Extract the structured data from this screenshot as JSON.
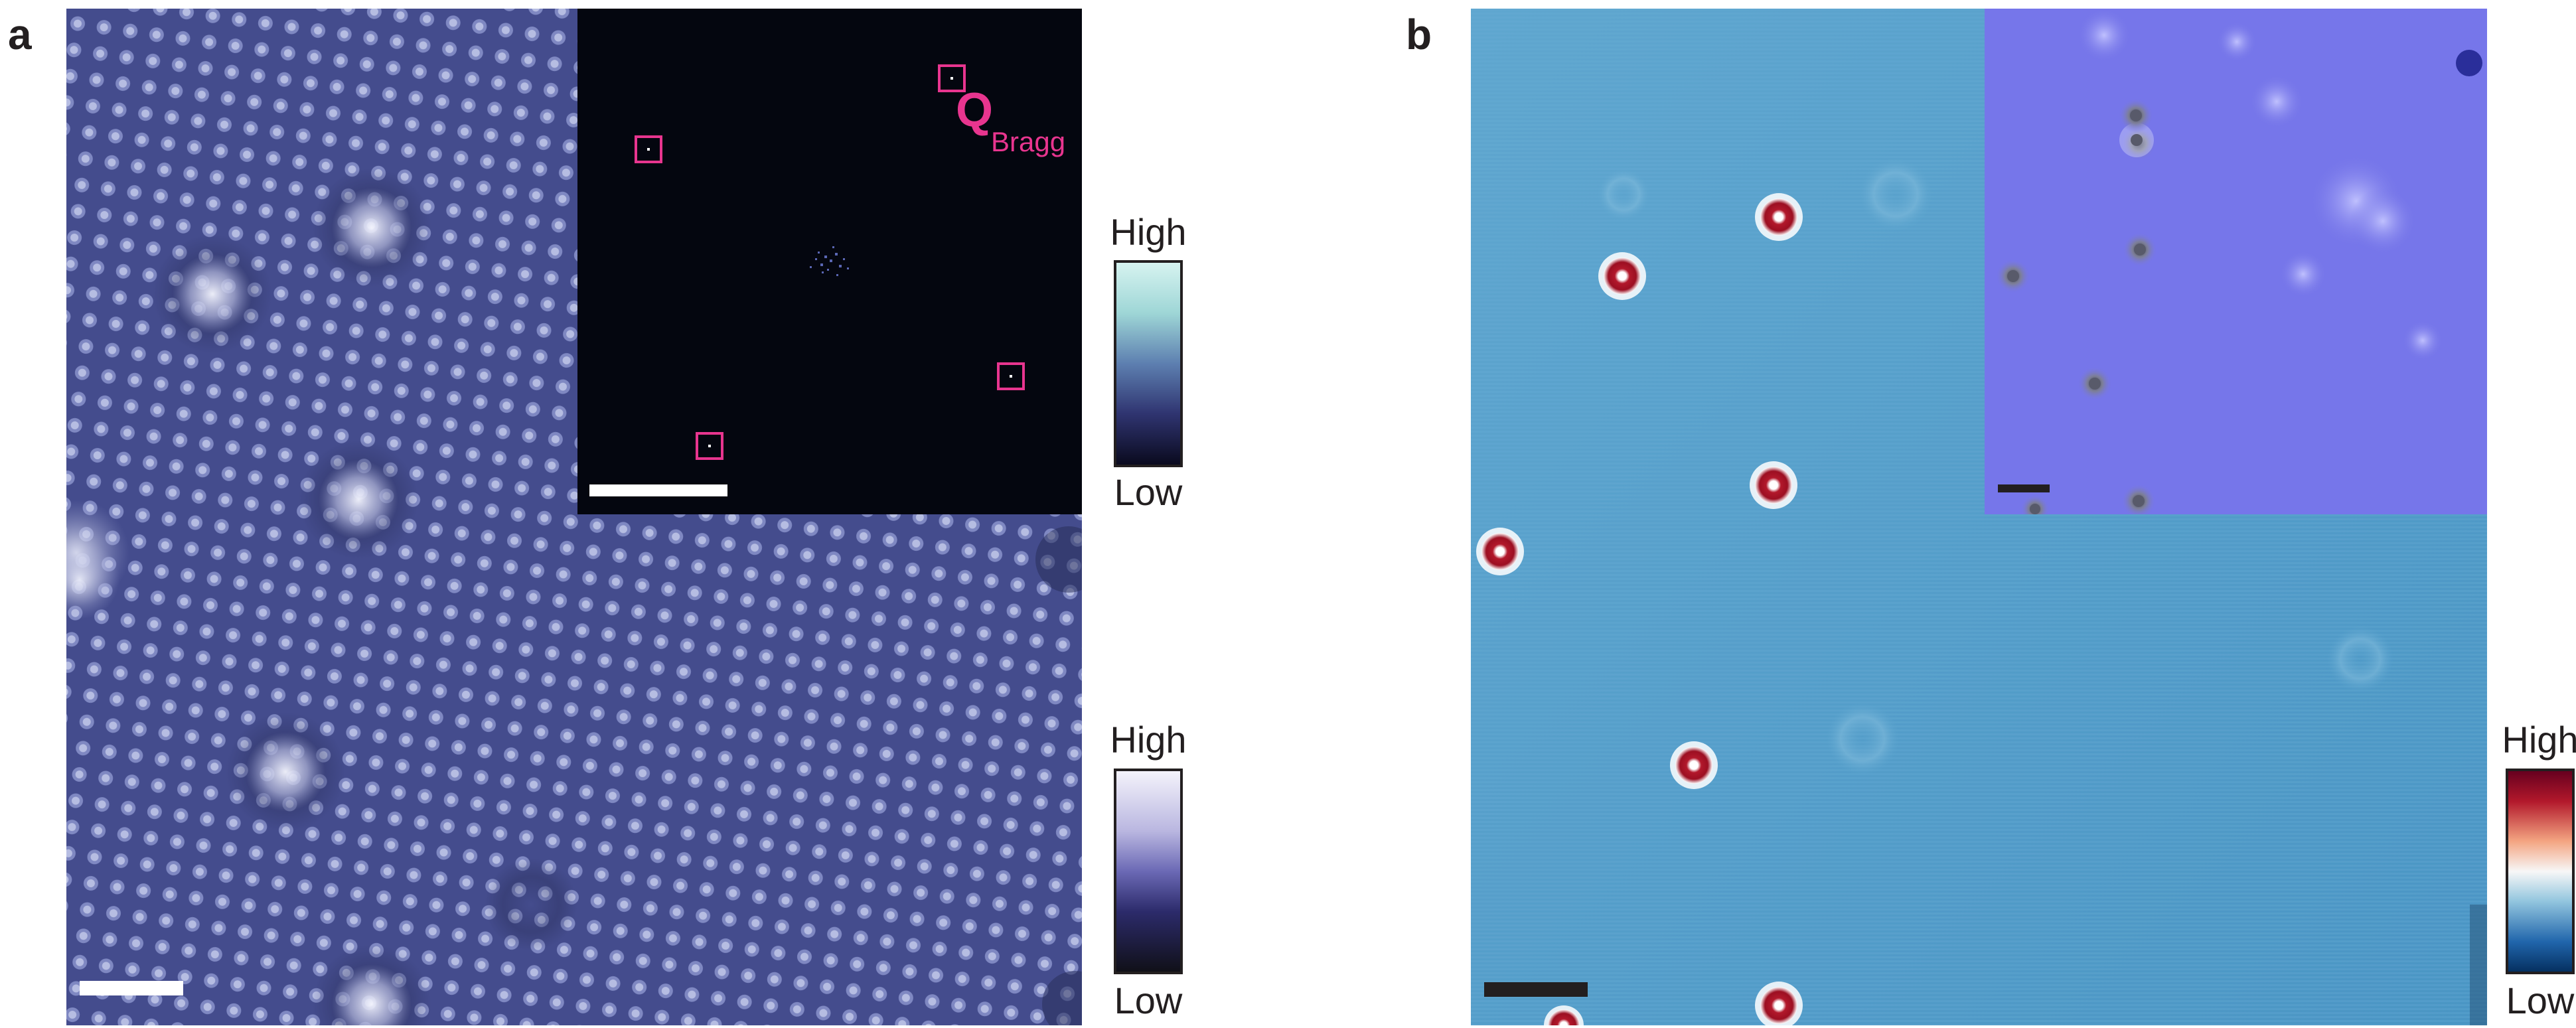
{
  "panel_a": {
    "letter": "a",
    "inset": {
      "marker_color": "#e8358f",
      "bragg_label": "Q",
      "bragg_subscript": "Bragg"
    },
    "inset_colorbar": {
      "high": "High",
      "low": "Low"
    },
    "main_colorbar": {
      "high": "High",
      "low": "Low"
    }
  },
  "panel_b": {
    "letter": "b",
    "colorbar": {
      "high": "High",
      "low": "Low"
    }
  }
}
